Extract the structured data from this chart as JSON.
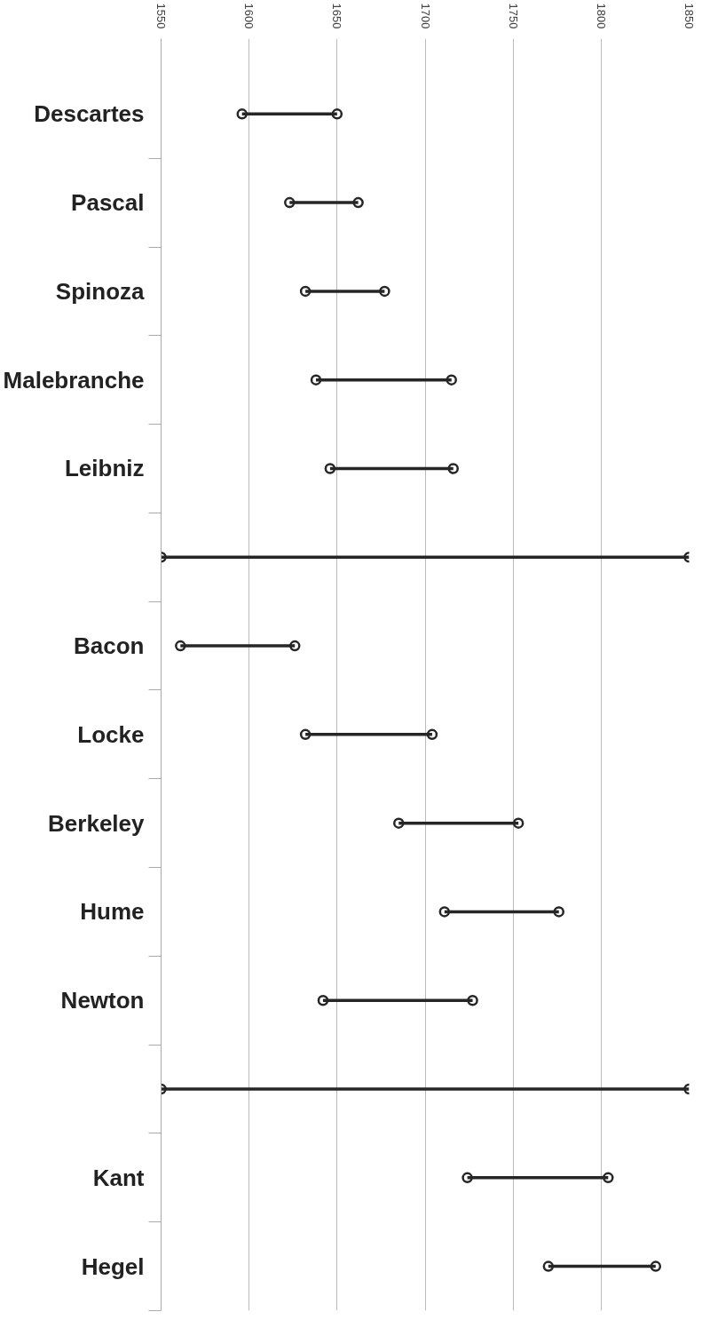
{
  "chart_data": {
    "type": "bar",
    "orientation": "horizontal",
    "categories": [
      "Descartes",
      "Pascal",
      "Spinoza",
      "Malebranche",
      "Leibniz",
      null,
      "Bacon",
      "Locke",
      "Berkeley",
      "Hume",
      "Newton",
      null,
      "Kant",
      "Hegel"
    ],
    "series": [
      {
        "type": "scatter",
        "color": "#262626",
        "values": [
          1596,
          1623,
          1632,
          1638,
          1646,
          1550,
          1561,
          1632,
          1685,
          1711,
          1642,
          1550,
          1724,
          1770
        ]
      },
      {
        "type": "scatter",
        "color": "#262626",
        "values": [
          1650,
          1662,
          1677,
          1715,
          1716,
          1850,
          1626,
          1704,
          1753,
          1776,
          1727,
          1850,
          1804,
          1831
        ]
      },
      {
        "type": "bar",
        "color": "#262626",
        "base": [
          1596,
          1623,
          1632,
          1638,
          1646,
          1550,
          1561,
          1632,
          1685,
          1711,
          1642,
          1550,
          1724,
          1770
        ],
        "values": [
          54,
          39,
          45,
          77,
          70,
          300,
          65,
          72,
          68,
          65,
          85,
          300,
          80,
          61
        ]
      }
    ],
    "xlim": [
      1550,
      1850
    ],
    "xticks": [
      1550,
      1600,
      1650,
      1700,
      1750,
      1800,
      1850
    ],
    "grid": "x",
    "marker": "circle"
  }
}
